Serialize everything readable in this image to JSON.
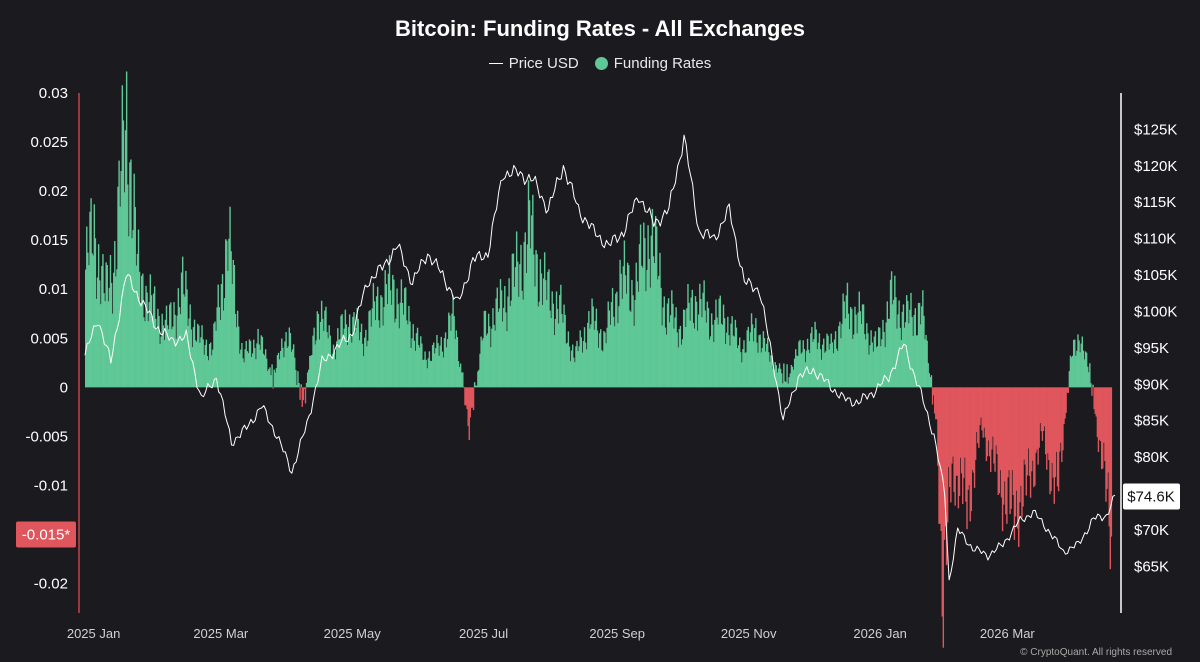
{
  "header": {
    "title": "Bitcoin: Funding Rates - All Exchanges"
  },
  "legend": {
    "price_label": "Price USD",
    "funding_label": "Funding Rates"
  },
  "watermark": "© CryptoQuant. All rights reserved",
  "colors": {
    "background": "#1b1b1f",
    "positive": "#5fc896",
    "negative": "#e0565d",
    "price": "#ffffff"
  },
  "chart_data": {
    "type": "bar",
    "title": "Bitcoin: Funding Rates - All Exchanges",
    "legend_position": "top-center",
    "grid": false,
    "x_range": [
      "2025-01-01",
      "2026-04-24"
    ],
    "x_ticks": [
      "2025 Jan",
      "2025 Mar",
      "2025 May",
      "2025 Jul",
      "2025 Sep",
      "2025 Nov",
      "2026 Jan",
      "2026 Mar"
    ],
    "y_left": {
      "label": "",
      "range": [
        -0.023,
        0.03
      ],
      "ticks": [
        0.03,
        0.025,
        0.02,
        0.015,
        0.01,
        0.005,
        0,
        -0.005,
        -0.01,
        -0.015,
        -0.02
      ],
      "tick_labels": [
        "0.03",
        "0.025",
        "0.02",
        "0.015",
        "0.01",
        "0.005",
        "0",
        "-0.005",
        "-0.01",
        "-0.015",
        "-0.02"
      ]
    },
    "y_right": {
      "label": "",
      "range": [
        58600,
        130000
      ],
      "ticks": [
        125000,
        120000,
        115000,
        110000,
        105000,
        100000,
        95000,
        90000,
        85000,
        80000,
        70000,
        65000
      ],
      "tick_labels": [
        "$125K",
        "$120K",
        "$115K",
        "$110K",
        "$105K",
        "$100K",
        "$95K",
        "$90K",
        "$85K",
        "$80K",
        "$70K",
        "$65K"
      ]
    },
    "markers": {
      "current_price": 74600,
      "current_price_label": "$74.6K",
      "marked_funding": -0.015,
      "marked_funding_label": "-0.015*"
    },
    "series": [
      {
        "name": "Funding Rates",
        "kind": "bar",
        "dates": [
          "2025-01-01",
          "2025-01-05",
          "2025-01-10",
          "2025-01-15",
          "2025-01-20",
          "2025-01-25",
          "2025-02-01",
          "2025-02-08",
          "2025-02-15",
          "2025-02-22",
          "2025-03-01",
          "2025-03-08",
          "2025-03-15",
          "2025-03-22",
          "2025-03-29",
          "2025-04-05",
          "2025-04-12",
          "2025-04-19",
          "2025-04-26",
          "2025-05-03",
          "2025-05-10",
          "2025-05-17",
          "2025-05-24",
          "2025-05-31",
          "2025-06-07",
          "2025-06-14",
          "2025-06-21",
          "2025-06-28",
          "2025-07-05",
          "2025-07-12",
          "2025-07-19",
          "2025-07-26",
          "2025-08-02",
          "2025-08-09",
          "2025-08-16",
          "2025-08-23",
          "2025-08-30",
          "2025-09-06",
          "2025-09-13",
          "2025-09-20",
          "2025-09-27",
          "2025-10-04",
          "2025-10-11",
          "2025-10-18",
          "2025-10-25",
          "2025-11-01",
          "2025-11-08",
          "2025-11-15",
          "2025-11-22",
          "2025-11-29",
          "2025-12-06",
          "2025-12-13",
          "2025-12-20",
          "2025-12-27",
          "2026-01-03",
          "2026-01-10",
          "2026-01-17",
          "2026-01-24",
          "2026-01-31",
          "2026-02-03",
          "2026-02-07",
          "2026-02-14",
          "2026-02-21",
          "2026-02-28",
          "2026-03-07",
          "2026-03-14",
          "2026-03-21",
          "2026-03-28",
          "2026-04-04",
          "2026-04-11",
          "2026-04-18",
          "2026-04-22"
        ],
        "values": [
          0.012,
          0.016,
          0.009,
          0.014,
          0.028,
          0.012,
          0.008,
          0.006,
          0.01,
          0.005,
          0.004,
          0.015,
          0.003,
          0.005,
          0.001,
          0.006,
          -0.002,
          0.008,
          0.004,
          0.007,
          0.005,
          0.009,
          0.01,
          0.007,
          0.003,
          0.004,
          0.007,
          -0.004,
          0.006,
          0.008,
          0.011,
          0.016,
          0.01,
          0.008,
          0.003,
          0.007,
          0.005,
          0.011,
          0.01,
          0.016,
          0.008,
          0.006,
          0.009,
          0.007,
          0.007,
          0.004,
          0.006,
          0.003,
          0.001,
          0.004,
          0.005,
          0.004,
          0.008,
          0.007,
          0.004,
          0.009,
          0.007,
          0.008,
          -0.004,
          -0.022,
          -0.008,
          -0.012,
          -0.004,
          -0.009,
          -0.013,
          -0.01,
          -0.005,
          -0.011,
          0.005,
          0.003,
          -0.008,
          -0.015
        ]
      },
      {
        "name": "Price USD",
        "kind": "line",
        "dates": [
          "2025-01-01",
          "2025-01-07",
          "2025-01-13",
          "2025-01-20",
          "2025-01-26",
          "2025-02-03",
          "2025-02-10",
          "2025-02-17",
          "2025-02-24",
          "2025-03-03",
          "2025-03-10",
          "2025-03-17",
          "2025-03-24",
          "2025-03-31",
          "2025-04-07",
          "2025-04-14",
          "2025-04-21",
          "2025-04-28",
          "2025-05-05",
          "2025-05-12",
          "2025-05-19",
          "2025-05-26",
          "2025-06-02",
          "2025-06-09",
          "2025-06-16",
          "2025-06-23",
          "2025-06-30",
          "2025-07-07",
          "2025-07-14",
          "2025-07-21",
          "2025-07-28",
          "2025-08-04",
          "2025-08-11",
          "2025-08-18",
          "2025-08-25",
          "2025-09-01",
          "2025-09-08",
          "2025-09-15",
          "2025-09-22",
          "2025-09-29",
          "2025-10-06",
          "2025-10-13",
          "2025-10-20",
          "2025-10-27",
          "2025-11-03",
          "2025-11-10",
          "2025-11-17",
          "2025-11-21",
          "2025-11-28",
          "2025-12-05",
          "2025-12-12",
          "2025-12-19",
          "2025-12-26",
          "2026-01-02",
          "2026-01-09",
          "2026-01-16",
          "2026-01-23",
          "2026-01-30",
          "2026-02-04",
          "2026-02-06",
          "2026-02-10",
          "2026-02-17",
          "2026-02-24",
          "2026-03-03",
          "2026-03-10",
          "2026-03-17",
          "2026-03-24",
          "2026-03-31",
          "2026-04-07",
          "2026-04-14",
          "2026-04-20",
          "2026-04-24"
        ],
        "values": [
          94000,
          99000,
          93000,
          105000,
          102000,
          98000,
          96000,
          96500,
          88000,
          91000,
          82000,
          84000,
          87000,
          83000,
          78000,
          84500,
          93000,
          95000,
          97000,
          104000,
          106000,
          109000,
          104000,
          108000,
          105000,
          101000,
          107000,
          108000,
          119000,
          119000,
          118000,
          114000,
          120000,
          114000,
          111000,
          109000,
          111000,
          116000,
          112000,
          114000,
          124000,
          111000,
          110000,
          114000,
          104000,
          103000,
          92000,
          85000,
          91000,
          92000,
          90000,
          88000,
          87500,
          89000,
          91000,
          95500,
          89500,
          83000,
          75000,
          63000,
          70000,
          67500,
          66500,
          68000,
          71000,
          72500,
          70000,
          67000,
          68000,
          71500,
          72000,
          74600
        ]
      }
    ]
  }
}
